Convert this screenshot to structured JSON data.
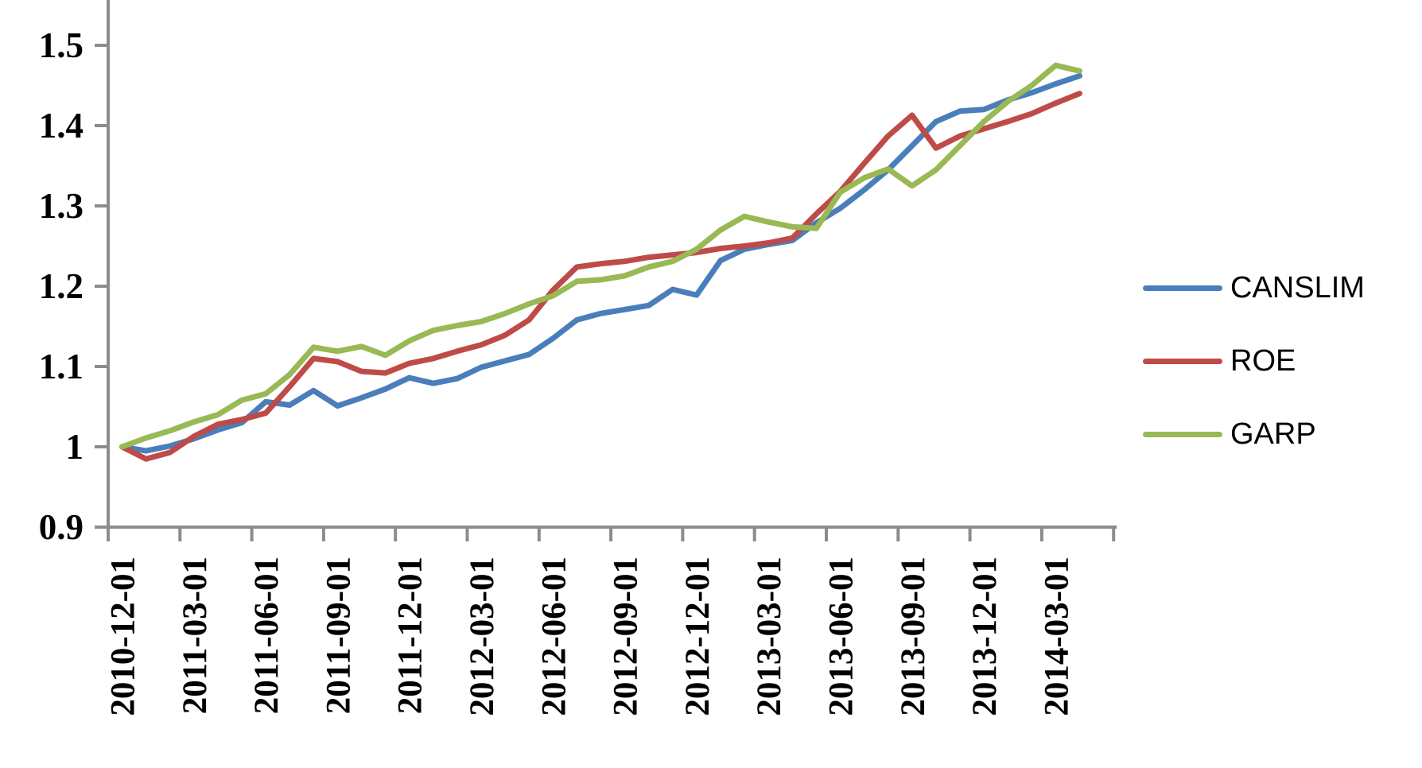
{
  "chart_data": {
    "type": "line",
    "title": "",
    "xlabel": "",
    "ylabel": "",
    "grid": false,
    "legend_position": "right-middle",
    "axis_color": "#8C8C8C",
    "background_color": "#FFFFFF",
    "ylim": [
      0.9,
      1.56
    ],
    "y_ticks": [
      0.9,
      1.0,
      1.1,
      1.2,
      1.3,
      1.4,
      1.5
    ],
    "y_tick_labels": [
      "0.9",
      "1",
      "1.1",
      "1.2",
      "1.3",
      "1.4",
      "1.5"
    ],
    "x_tick_label_every": 3,
    "x_tick_labels": [
      "2010-12-01",
      "2011-03-01",
      "2011-06-01",
      "2011-09-01",
      "2011-12-01",
      "2012-03-01",
      "2012-06-01",
      "2012-09-01",
      "2012-12-01",
      "2013-03-01",
      "2013-06-01",
      "2013-09-01",
      "2013-12-01",
      "2014-03-01"
    ],
    "x": [
      "2010-12",
      "2011-01",
      "2011-02",
      "2011-03",
      "2011-04",
      "2011-05",
      "2011-06",
      "2011-07",
      "2011-08",
      "2011-09",
      "2011-10",
      "2011-11",
      "2011-12",
      "2012-01",
      "2012-02",
      "2012-03",
      "2012-04",
      "2012-05",
      "2012-06",
      "2012-07",
      "2012-08",
      "2012-09",
      "2012-10",
      "2012-11",
      "2012-12",
      "2013-01",
      "2013-02",
      "2013-03",
      "2013-04",
      "2013-05",
      "2013-06",
      "2013-07",
      "2013-08",
      "2013-09",
      "2013-10",
      "2013-11",
      "2013-12",
      "2014-01",
      "2014-02",
      "2014-03",
      "2014-04"
    ],
    "series": [
      {
        "name": "CANSLIM",
        "color": "#4A7EBB",
        "values": [
          1.0,
          0.995,
          1.001,
          1.01,
          1.021,
          1.03,
          1.056,
          1.052,
          1.07,
          1.051,
          1.061,
          1.072,
          1.086,
          1.079,
          1.085,
          1.099,
          1.107,
          1.115,
          1.135,
          1.158,
          1.166,
          1.171,
          1.176,
          1.196,
          1.189,
          1.232,
          1.246,
          1.252,
          1.257,
          1.279,
          1.297,
          1.32,
          1.345,
          1.375,
          1.405,
          1.418,
          1.42,
          1.432,
          1.441,
          1.452,
          1.462
        ]
      },
      {
        "name": "ROE",
        "color": "#BE4B48",
        "values": [
          1.0,
          0.985,
          0.993,
          1.013,
          1.028,
          1.034,
          1.042,
          1.075,
          1.11,
          1.106,
          1.094,
          1.092,
          1.104,
          1.11,
          1.119,
          1.127,
          1.139,
          1.158,
          1.195,
          1.224,
          1.228,
          1.231,
          1.236,
          1.239,
          1.242,
          1.247,
          1.25,
          1.254,
          1.26,
          1.29,
          1.318,
          1.353,
          1.387,
          1.413,
          1.372,
          1.387,
          1.396,
          1.405,
          1.415,
          1.428,
          1.44
        ]
      },
      {
        "name": "GARP",
        "color": "#98B954",
        "values": [
          1.0,
          1.011,
          1.02,
          1.031,
          1.04,
          1.058,
          1.066,
          1.09,
          1.124,
          1.119,
          1.125,
          1.114,
          1.132,
          1.145,
          1.151,
          1.156,
          1.166,
          1.178,
          1.188,
          1.206,
          1.208,
          1.213,
          1.224,
          1.231,
          1.246,
          1.27,
          1.287,
          1.28,
          1.274,
          1.272,
          1.317,
          1.335,
          1.346,
          1.325,
          1.345,
          1.375,
          1.405,
          1.43,
          1.45,
          1.475,
          1.468
        ]
      }
    ]
  },
  "legend": {
    "items": [
      {
        "label": "CANSLIM"
      },
      {
        "label": "ROE"
      },
      {
        "label": "GARP"
      }
    ]
  }
}
